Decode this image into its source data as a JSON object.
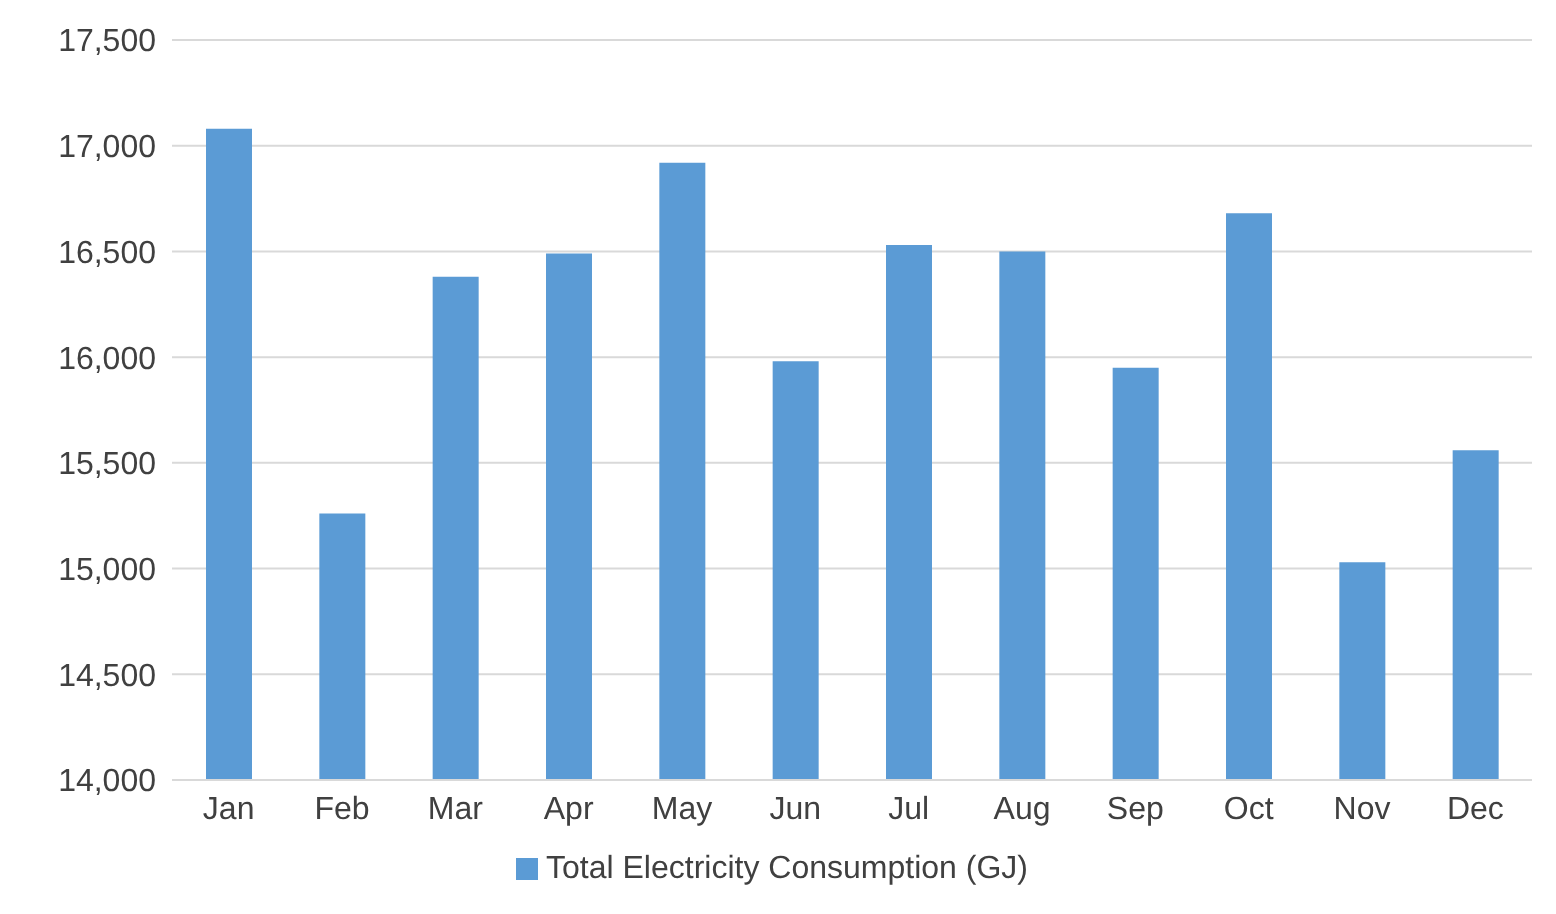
{
  "chart_data": {
    "type": "bar",
    "categories": [
      "Jan",
      "Feb",
      "Mar",
      "Apr",
      "May",
      "Jun",
      "Jul",
      "Aug",
      "Sep",
      "Oct",
      "Nov",
      "Dec"
    ],
    "series": [
      {
        "name": "Total Electricity Consumption (GJ)",
        "color": "#5b9bd5",
        "values": [
          17080,
          15260,
          16380,
          16490,
          16920,
          15980,
          16530,
          16500,
          15950,
          16680,
          15030,
          15560
        ]
      }
    ],
    "ylim": [
      14000,
      17500
    ],
    "yticks": [
      {
        "value": 14000,
        "label": "14,000"
      },
      {
        "value": 14500,
        "label": "14,500"
      },
      {
        "value": 15000,
        "label": "15,000"
      },
      {
        "value": 15500,
        "label": "15,500"
      },
      {
        "value": 16000,
        "label": "16,000"
      },
      {
        "value": 16500,
        "label": "16,500"
      },
      {
        "value": 17000,
        "label": "17,000"
      },
      {
        "value": 17500,
        "label": "17,500"
      }
    ],
    "grid": "y",
    "legend": "bottom"
  }
}
